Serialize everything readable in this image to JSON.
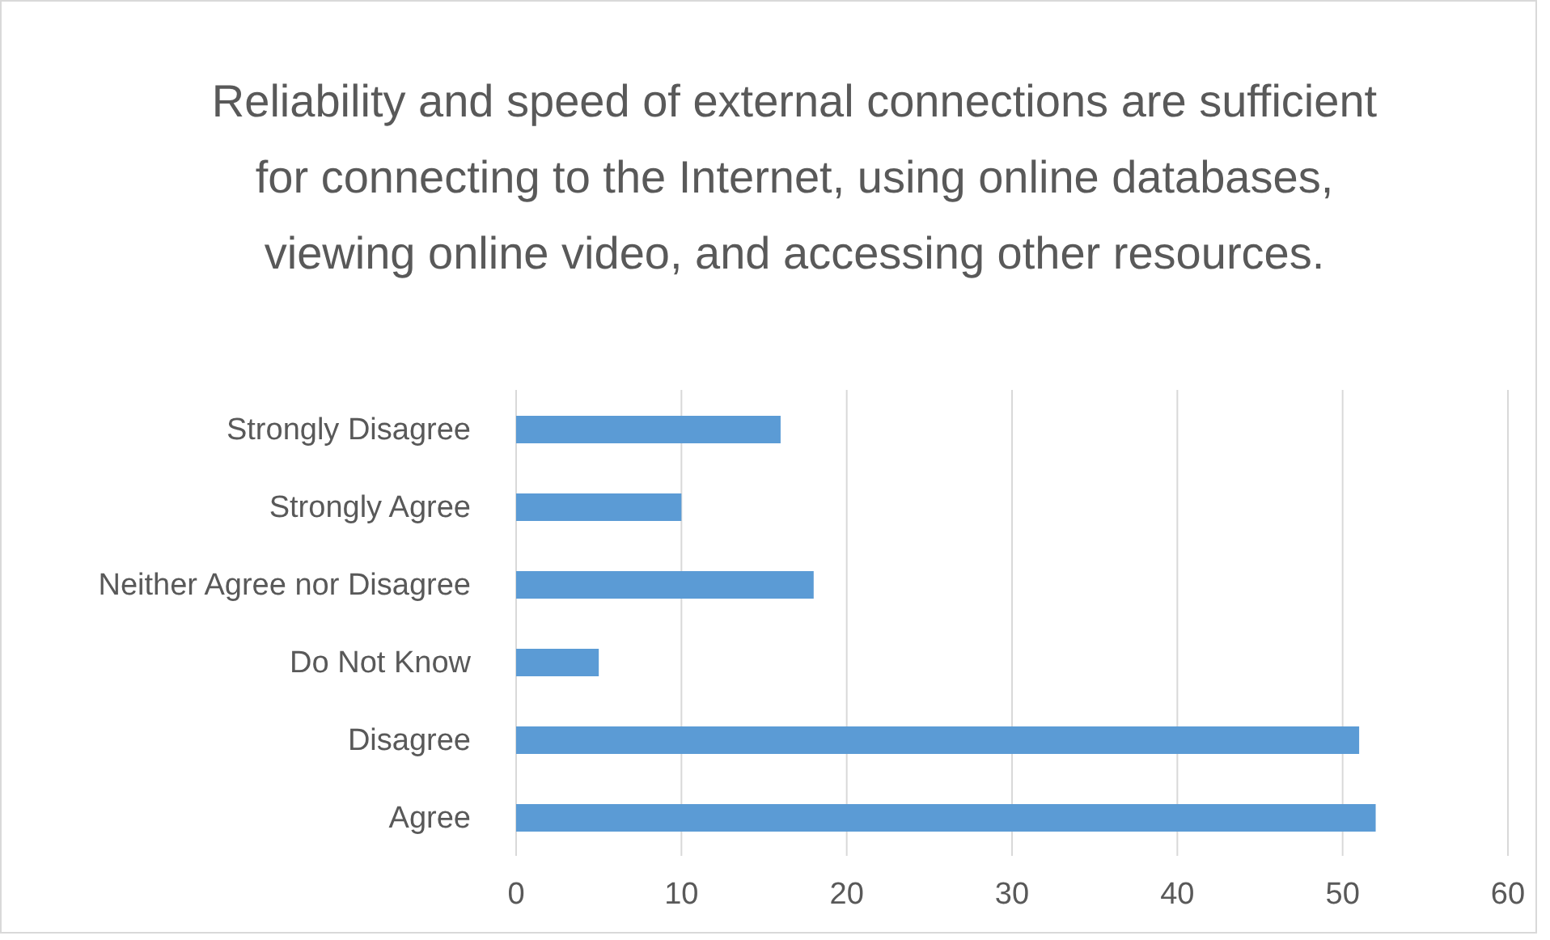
{
  "chart_data": {
    "type": "bar",
    "orientation": "horizontal",
    "title": "Reliability and speed of external connections are sufficient for connecting to the Internet, using online databases, viewing online video, and accessing other resources.",
    "categories": [
      "Strongly Disagree",
      "Strongly Agree",
      "Neither Agree nor Disagree",
      "Do Not Know",
      "Disagree",
      "Agree"
    ],
    "values": [
      16,
      10,
      18,
      5,
      51,
      52
    ],
    "color": "#5b9bd5",
    "xlim": [
      0,
      60
    ],
    "xticks": [
      0,
      10,
      20,
      30,
      40,
      50,
      60
    ],
    "grid": "x"
  }
}
